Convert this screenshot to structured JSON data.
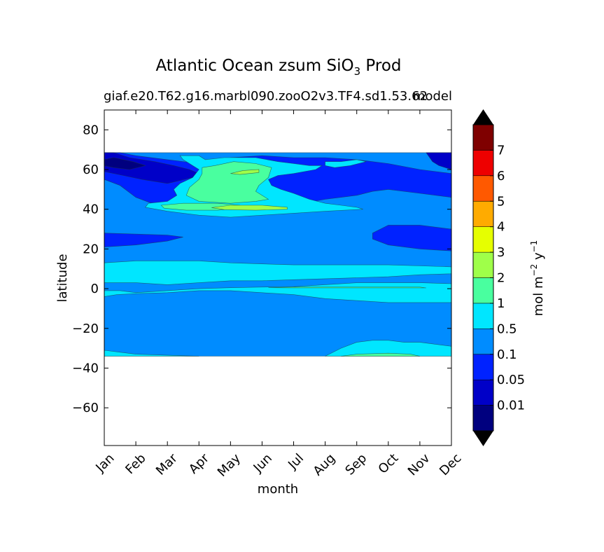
{
  "chart_data": {
    "type": "heatmap",
    "title_main": "Atlantic Ocean zsum SiO",
    "title_sub": "3",
    "title_tail": " Prod",
    "subtitle_left": "giaf.e20.T62.g16.marbl090.zooO2v3.TF4.sd1.53.62",
    "subtitle_right": "model",
    "xlabel": "month",
    "ylabel": "latitude",
    "x_ticks": [
      "Jan",
      "Feb",
      "Mar",
      "Apr",
      "May",
      "Jun",
      "Jul",
      "Aug",
      "Sep",
      "Oct",
      "Nov",
      "Dec"
    ],
    "y_ticks": [
      80,
      60,
      40,
      20,
      0,
      -20,
      -40,
      -60
    ],
    "y_tick_labels": [
      "80",
      "60",
      "40",
      "20",
      "0",
      "−20",
      "−40",
      "−60"
    ],
    "xlim": [
      0,
      11
    ],
    "ylim": [
      -79,
      90
    ],
    "data_lat_range": [
      -34,
      68.5
    ],
    "colorbar": {
      "levels": [
        0.01,
        0.05,
        0.1,
        0.5,
        1,
        2,
        3,
        4,
        5,
        6,
        7
      ],
      "tick_labels": [
        "0.01",
        "0.05",
        "0.1",
        "0.5",
        "1",
        "2",
        "3",
        "4",
        "5",
        "6",
        "7"
      ],
      "colors": [
        "#00007f",
        "#0000c8",
        "#0022ff",
        "#008cff",
        "#00e6ff",
        "#49ff9f",
        "#9fff49",
        "#e6ff00",
        "#ffab00",
        "#ff5900",
        "#ee0000",
        "#7f0000"
      ],
      "under_color": "#000000",
      "over_color": "#000000",
      "label_main": "mol m",
      "label_exp1": "−2",
      "label_mid": " y",
      "label_exp2": "−1"
    },
    "regions": [
      {
        "level": 3,
        "path": [
          [
            0,
            68.5
          ],
          [
            11,
            68.5
          ],
          [
            11,
            -34
          ],
          [
            0,
            -34
          ]
        ]
      },
      {
        "level": 2,
        "path": [
          [
            0,
            68.5
          ],
          [
            0.5,
            68.5
          ],
          [
            1,
            67
          ],
          [
            2,
            65
          ],
          [
            3,
            63
          ],
          [
            4,
            66
          ],
          [
            5,
            67
          ],
          [
            6,
            66
          ],
          [
            7,
            66
          ],
          [
            8,
            65
          ],
          [
            9,
            63
          ],
          [
            10,
            60
          ],
          [
            11,
            58
          ],
          [
            11,
            46
          ],
          [
            10,
            48
          ],
          [
            9,
            50
          ],
          [
            8.5,
            49
          ],
          [
            8,
            47
          ],
          [
            7.5,
            46
          ],
          [
            7,
            45
          ],
          [
            6,
            42
          ],
          [
            5,
            40
          ],
          [
            4,
            39
          ],
          [
            3,
            38
          ],
          [
            2,
            40
          ],
          [
            1,
            46
          ],
          [
            0.5,
            52
          ],
          [
            0,
            55
          ]
        ]
      },
      {
        "level": 2,
        "path": [
          [
            0,
            28
          ],
          [
            2,
            27
          ],
          [
            2.5,
            26
          ],
          [
            2,
            24
          ],
          [
            1,
            22
          ],
          [
            0,
            21
          ]
        ]
      },
      {
        "level": 2,
        "path": [
          [
            9,
            32
          ],
          [
            10,
            32
          ],
          [
            11,
            30
          ],
          [
            11,
            19
          ],
          [
            10,
            20
          ],
          [
            9,
            22
          ],
          [
            8.5,
            25
          ],
          [
            8.5,
            28
          ]
        ]
      },
      {
        "level": 1,
        "path": [
          [
            0,
            68.5
          ],
          [
            0.3,
            68.5
          ],
          [
            0.8,
            66
          ],
          [
            1.6,
            64
          ],
          [
            2.2,
            62
          ],
          [
            2.7,
            60
          ],
          [
            3,
            58
          ],
          [
            2.8,
            56
          ],
          [
            2,
            53
          ],
          [
            1.2,
            55
          ],
          [
            0.6,
            57
          ],
          [
            0,
            59
          ]
        ]
      },
      {
        "level": 1,
        "path": [
          [
            10.2,
            68.5
          ],
          [
            11,
            68.5
          ],
          [
            11,
            60
          ],
          [
            10.6,
            62
          ],
          [
            10.4,
            64
          ]
        ]
      },
      {
        "level": 0,
        "path": [
          [
            0,
            65
          ],
          [
            0.3,
            66
          ],
          [
            0.9,
            64
          ],
          [
            1.3,
            62
          ],
          [
            0.8,
            60
          ],
          [
            0.3,
            61
          ],
          [
            0,
            62
          ]
        ]
      },
      {
        "level": 4,
        "path": [
          [
            2.4,
            67
          ],
          [
            3,
            67
          ],
          [
            3.2,
            65
          ],
          [
            3.8,
            66
          ],
          [
            4.8,
            66
          ],
          [
            5.5,
            64
          ],
          [
            6,
            63
          ],
          [
            6.5,
            62
          ],
          [
            6.9,
            62
          ],
          [
            6.7,
            60
          ],
          [
            6,
            58
          ],
          [
            5.5,
            57
          ],
          [
            5.2,
            55
          ],
          [
            5.3,
            52
          ],
          [
            5.6,
            50
          ],
          [
            6,
            48
          ],
          [
            6.5,
            45
          ],
          [
            7,
            43
          ],
          [
            7.5,
            42
          ],
          [
            8,
            41
          ],
          [
            8.2,
            40
          ],
          [
            7,
            39
          ],
          [
            6,
            38
          ],
          [
            5,
            37
          ],
          [
            4,
            36
          ],
          [
            3,
            37
          ],
          [
            2,
            39
          ],
          [
            1.3,
            41
          ],
          [
            1.4,
            43
          ],
          [
            2,
            44
          ],
          [
            2.3,
            47
          ],
          [
            2.2,
            50
          ],
          [
            2.4,
            53
          ],
          [
            2.8,
            56
          ],
          [
            3,
            60
          ],
          [
            2.7,
            63
          ],
          [
            2.5,
            65
          ]
        ]
      },
      {
        "level": 4,
        "path": [
          [
            7,
            64
          ],
          [
            7.5,
            64
          ],
          [
            8,
            65
          ],
          [
            8.3,
            64
          ],
          [
            7.8,
            62
          ],
          [
            7.3,
            61
          ],
          [
            7,
            62
          ]
        ]
      },
      {
        "level": 5,
        "path": [
          [
            3.1,
            61
          ],
          [
            3.5,
            62
          ],
          [
            4.1,
            64
          ],
          [
            4.8,
            63
          ],
          [
            5.3,
            61
          ],
          [
            5.2,
            56
          ],
          [
            4.9,
            52
          ],
          [
            4.8,
            49
          ],
          [
            5,
            47
          ],
          [
            5.2,
            45
          ],
          [
            4.8,
            44
          ],
          [
            4,
            43
          ],
          [
            3,
            44
          ],
          [
            2.6,
            47
          ],
          [
            2.7,
            51
          ],
          [
            3,
            55
          ],
          [
            3.1,
            58
          ]
        ]
      },
      {
        "level": 5,
        "path": [
          [
            1.8,
            42
          ],
          [
            2.5,
            43
          ],
          [
            3.6,
            43
          ],
          [
            4.3,
            42
          ],
          [
            4.3,
            40.5
          ],
          [
            3.6,
            39.5
          ],
          [
            2.6,
            39.5
          ],
          [
            1.9,
            40.5
          ]
        ]
      },
      {
        "level": 6,
        "path": [
          [
            3.4,
            40.8
          ],
          [
            4,
            42
          ],
          [
            5,
            42
          ],
          [
            5.8,
            41
          ],
          [
            5.8,
            40
          ],
          [
            4.8,
            39.5
          ],
          [
            3.8,
            39.8
          ]
        ]
      },
      {
        "level": 6,
        "path": [
          [
            4,
            58
          ],
          [
            4.4,
            59.5
          ],
          [
            4.9,
            60
          ],
          [
            4.9,
            58.5
          ],
          [
            4.3,
            57.5
          ]
        ]
      },
      {
        "level": 4,
        "path": [
          [
            0,
            13
          ],
          [
            1,
            14
          ],
          [
            2,
            14
          ],
          [
            3,
            14
          ],
          [
            4,
            13
          ],
          [
            5,
            12.5
          ],
          [
            6,
            12
          ],
          [
            7,
            12
          ],
          [
            8,
            12
          ],
          [
            9,
            12
          ],
          [
            10,
            11.5
          ],
          [
            11,
            11
          ],
          [
            11,
            7.5
          ],
          [
            10,
            7
          ],
          [
            9,
            6
          ],
          [
            8,
            5.5
          ],
          [
            7,
            5
          ],
          [
            6,
            4.5
          ],
          [
            5,
            4
          ],
          [
            4,
            4
          ],
          [
            3,
            3
          ],
          [
            2,
            2
          ],
          [
            1,
            3
          ],
          [
            0,
            3
          ]
        ]
      },
      {
        "level": 4,
        "path": [
          [
            0,
            -1
          ],
          [
            0.5,
            -1
          ],
          [
            1,
            -2
          ],
          [
            2,
            -1
          ],
          [
            3,
            0
          ],
          [
            4,
            0.5
          ],
          [
            5,
            0.8
          ],
          [
            6,
            1
          ],
          [
            7,
            2
          ],
          [
            8,
            3
          ],
          [
            9,
            3
          ],
          [
            10,
            3
          ],
          [
            11,
            2.5
          ],
          [
            11,
            -7
          ],
          [
            10,
            -7
          ],
          [
            9,
            -7
          ],
          [
            8,
            -6
          ],
          [
            7,
            -5
          ],
          [
            6,
            -3
          ],
          [
            5,
            -2
          ],
          [
            4,
            -1
          ],
          [
            3,
            -1
          ],
          [
            2,
            -2
          ],
          [
            1,
            -2.5
          ],
          [
            0.4,
            -3
          ],
          [
            0,
            -4
          ]
        ]
      },
      {
        "level": 4,
        "path": [
          [
            0,
            -31
          ],
          [
            0.5,
            -32
          ],
          [
            1,
            -33
          ],
          [
            3,
            -34
          ],
          [
            0,
            -34
          ]
        ]
      },
      {
        "level": 4,
        "path": [
          [
            7,
            -34
          ],
          [
            7.5,
            -30
          ],
          [
            8,
            -27
          ],
          [
            8.5,
            -26
          ],
          [
            9,
            -26
          ],
          [
            9.5,
            -27
          ],
          [
            10,
            -27
          ],
          [
            11,
            -29
          ],
          [
            11,
            -34
          ]
        ]
      },
      {
        "level": 5,
        "path": [
          [
            7.5,
            -34
          ],
          [
            8,
            -33
          ],
          [
            9,
            -32.5
          ],
          [
            9.7,
            -33
          ],
          [
            10,
            -34
          ]
        ]
      },
      {
        "level": 5,
        "path": [
          [
            5.2,
            0.5
          ],
          [
            6,
            0.8
          ],
          [
            8,
            0.8
          ],
          [
            10,
            0.8
          ],
          [
            10.2,
            0.4
          ],
          [
            8,
            0.4
          ],
          [
            6,
            0.4
          ]
        ]
      }
    ]
  }
}
